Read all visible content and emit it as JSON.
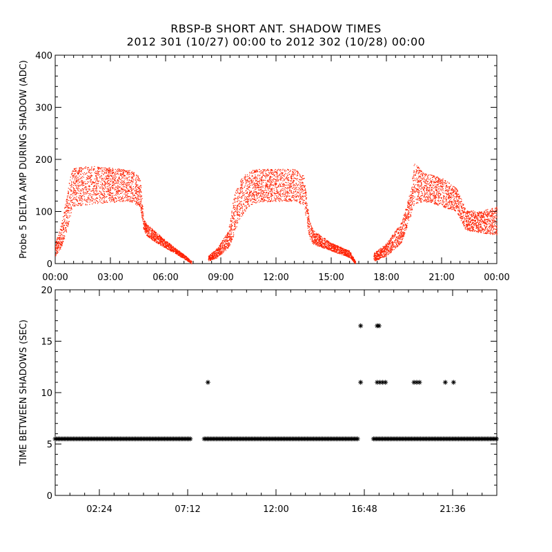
{
  "title_line1": "RBSP-B SHORT ANT. SHADOW TIMES",
  "title_line2": "2012 301 (10/27) 00:00 to 2012 302 (10/28) 00:00",
  "colors": {
    "amp_points": "#ff2000",
    "interval_points": "#000000",
    "axes": "#000000"
  },
  "chart_data": [
    {
      "type": "scatter",
      "ylabel": "Probe 5 DELTA AMP DURING SHADOW (ADC)",
      "xlabel": "",
      "xlim": [
        0,
        24
      ],
      "ylim": [
        0,
        400
      ],
      "x_ticks": [
        {
          "value": 0,
          "label": "00:00"
        },
        {
          "value": 3,
          "label": "03:00"
        },
        {
          "value": 6,
          "label": "06:00"
        },
        {
          "value": 9,
          "label": "09:00"
        },
        {
          "value": 12,
          "label": "12:00"
        },
        {
          "value": 15,
          "label": "15:00"
        },
        {
          "value": 18,
          "label": "18:00"
        },
        {
          "value": 21,
          "label": "21:00"
        },
        {
          "value": 24,
          "label": "00:00"
        }
      ],
      "y_ticks": [
        0,
        100,
        200,
        300,
        400
      ],
      "grid": false,
      "series": [
        {
          "color": "#ff2000",
          "envelope_hours": [
            0.0,
            0.3,
            0.6,
            0.8,
            1.0,
            2.0,
            3.0,
            4.0,
            4.6,
            4.8,
            5.0,
            5.5,
            6.0,
            6.6,
            7.2,
            7.4,
            8.3,
            8.8,
            9.4,
            9.7,
            10.0,
            10.5,
            11.0,
            12.0,
            13.0,
            13.5,
            13.8,
            14.0,
            15.0,
            16.0,
            16.3,
            17.3,
            18.0,
            18.8,
            19.3,
            19.5,
            20.0,
            21.0,
            21.8,
            22.3,
            23.0,
            24.0
          ],
          "envelope_low": [
            15,
            30,
            60,
            90,
            110,
            115,
            118,
            120,
            110,
            65,
            52,
            40,
            30,
            18,
            5,
            0,
            5,
            12,
            30,
            55,
            85,
            110,
            118,
            120,
            120,
            112,
            50,
            38,
            25,
            12,
            0,
            5,
            15,
            40,
            90,
            115,
            120,
            110,
            100,
            65,
            60,
            55
          ],
          "envelope_high": [
            40,
            75,
            125,
            170,
            185,
            188,
            185,
            180,
            170,
            85,
            75,
            60,
            45,
            28,
            12,
            5,
            15,
            30,
            65,
            130,
            160,
            178,
            182,
            182,
            182,
            170,
            85,
            65,
            40,
            25,
            5,
            20,
            40,
            80,
            140,
            195,
            175,
            165,
            145,
            105,
            100,
            110
          ]
        }
      ]
    },
    {
      "type": "scatter",
      "ylabel": "TIME BETWEEN SHADOWS (SEC)",
      "xlabel": "",
      "xlim": [
        0,
        24
      ],
      "ylim": [
        0,
        20
      ],
      "x_ticks": [
        {
          "value": 2.4,
          "label": "02:24"
        },
        {
          "value": 7.2,
          "label": "07:12"
        },
        {
          "value": 12.0,
          "label": "12:00"
        },
        {
          "value": 16.8,
          "label": "16:48"
        },
        {
          "value": 21.6,
          "label": "21:36"
        }
      ],
      "y_ticks": [
        0,
        5,
        10,
        15,
        20
      ],
      "grid": false,
      "series": [
        {
          "color": "#000000",
          "marker": "*",
          "base_value": 5.5,
          "base_segments_hours": [
            [
              0.0,
              7.4
            ],
            [
              8.1,
              16.5
            ],
            [
              17.3,
              24.0
            ]
          ],
          "outliers": [
            {
              "x": 8.3,
              "y": 11
            },
            {
              "x": 16.6,
              "y": 16.5
            },
            {
              "x": 16.6,
              "y": 11
            },
            {
              "x": 17.5,
              "y": 16.5
            },
            {
              "x": 17.6,
              "y": 16.5
            },
            {
              "x": 17.5,
              "y": 11
            },
            {
              "x": 17.65,
              "y": 11
            },
            {
              "x": 17.8,
              "y": 11
            },
            {
              "x": 17.95,
              "y": 11
            },
            {
              "x": 19.5,
              "y": 11
            },
            {
              "x": 19.65,
              "y": 11
            },
            {
              "x": 19.8,
              "y": 11
            },
            {
              "x": 21.2,
              "y": 11
            },
            {
              "x": 21.65,
              "y": 11
            }
          ]
        }
      ]
    }
  ]
}
